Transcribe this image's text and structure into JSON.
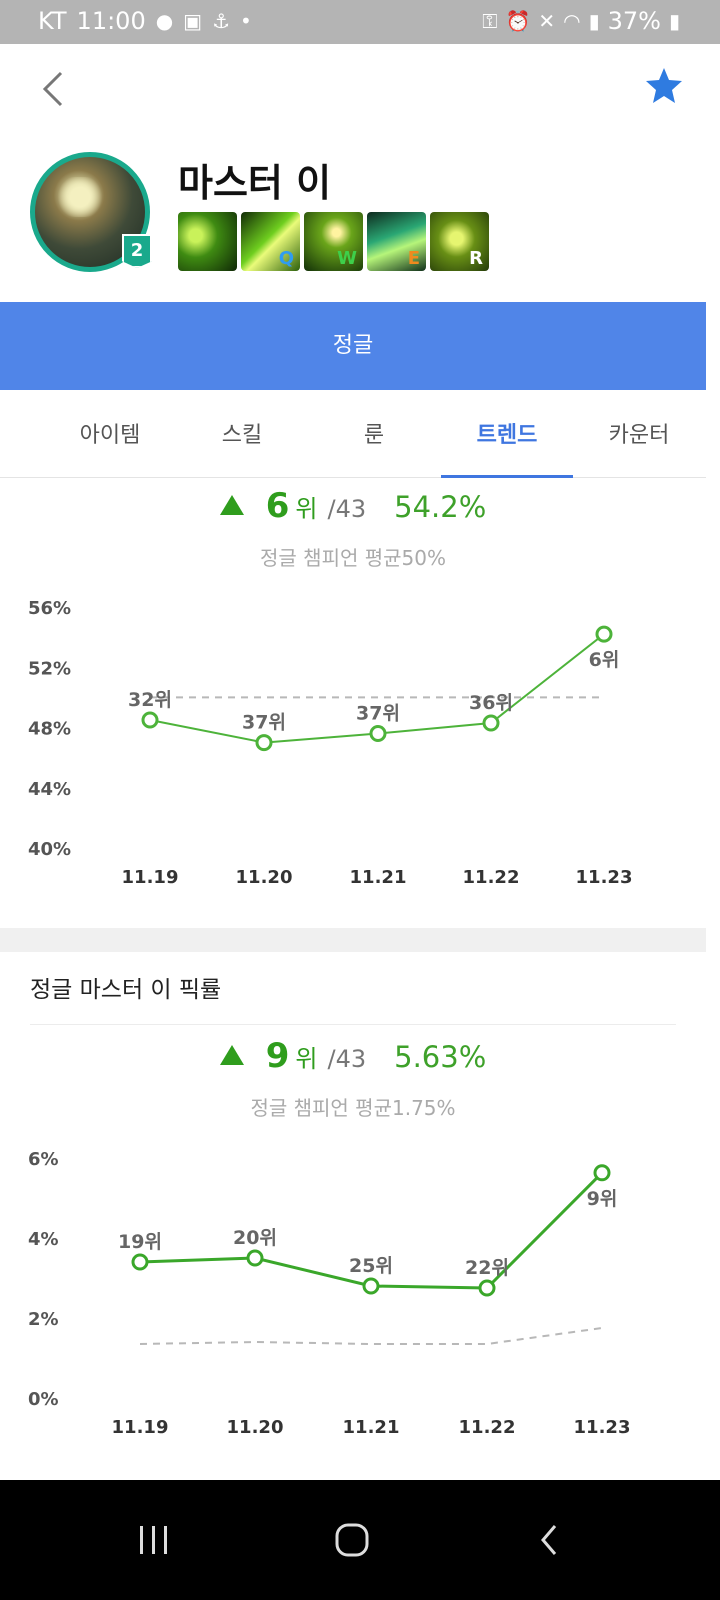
{
  "status_bar": {
    "carrier": "KT",
    "time": "11:00",
    "battery": "37%"
  },
  "header": {
    "champion_name": "마스터 이",
    "level": "2",
    "skill_keys": [
      "",
      "Q",
      "W",
      "E",
      "R"
    ],
    "skill_key_colors": [
      "",
      "#2f9cf0",
      "#3ecf4a",
      "#ef8a1e",
      "#ffffff"
    ]
  },
  "role": "정글",
  "tabs": [
    {
      "label": "아이템",
      "active": false
    },
    {
      "label": "스킬",
      "active": false
    },
    {
      "label": "룬",
      "active": false
    },
    {
      "label": "트렌드",
      "active": true
    },
    {
      "label": "카운터",
      "active": false
    }
  ],
  "win_summary": {
    "rank": "6",
    "rank_unit": "위",
    "total": "/43",
    "rate": "54.2%",
    "avg_text": "정글 챔피언 평균50%"
  },
  "pick_section": {
    "title": "정글 마스터 이 픽률"
  },
  "pick_summary": {
    "rank": "9",
    "rank_unit": "위",
    "total": "/43",
    "rate": "5.63%",
    "avg_text": "정글 챔피언 평균1.75%"
  },
  "chart_data": [
    {
      "type": "line",
      "categories": [
        "11.19",
        "11.20",
        "11.21",
        "11.22",
        "11.23"
      ],
      "series": [
        {
          "values": [
            48.5,
            47.0,
            47.6,
            48.3,
            54.2
          ],
          "labels": [
            "32위",
            "37위",
            "37위",
            "36위",
            "6위"
          ]
        }
      ],
      "average": [
        50,
        50,
        50,
        50,
        50
      ],
      "y_ticks": [
        "56%",
        "52%",
        "48%",
        "44%",
        "40%"
      ],
      "y_tick_values": [
        56,
        52,
        48,
        44,
        40
      ],
      "ylim": [
        40,
        56
      ],
      "grid": false,
      "colors": {
        "line": "#4db33a",
        "average": "#b8b8b8"
      }
    },
    {
      "type": "line",
      "categories": [
        "11.19",
        "11.20",
        "11.21",
        "11.22",
        "11.23"
      ],
      "series": [
        {
          "values": [
            3.4,
            3.5,
            2.8,
            2.75,
            5.63
          ],
          "labels": [
            "19위",
            "20위",
            "25위",
            "22위",
            "9위"
          ]
        }
      ],
      "average": [
        1.35,
        1.4,
        1.35,
        1.35,
        1.75
      ],
      "y_ticks": [
        "6%",
        "4%",
        "2%",
        "0%"
      ],
      "y_tick_values": [
        6,
        4,
        2,
        0
      ],
      "ylim": [
        0,
        6
      ],
      "grid": false,
      "colors": {
        "line": "#3aa72a",
        "average": "#b8b8b8"
      }
    }
  ]
}
